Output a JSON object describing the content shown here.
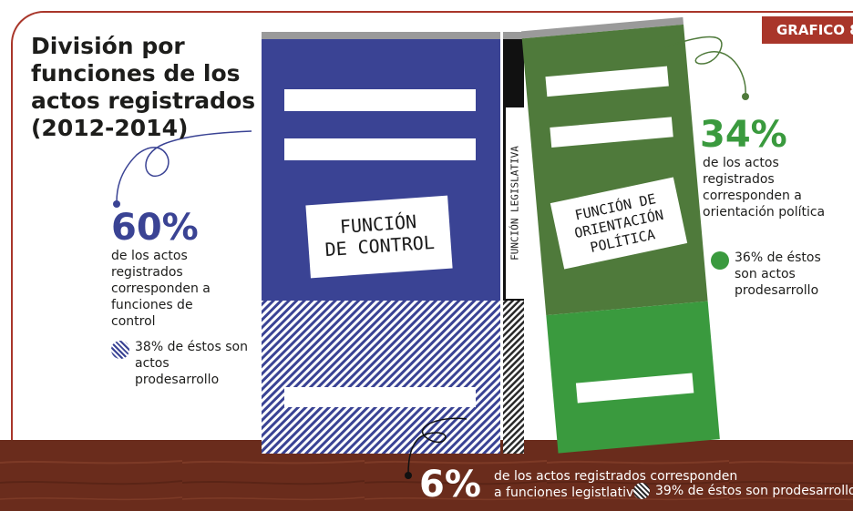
{
  "tag": "GRAFICO 8",
  "title": "División por funciones de los actos registrados (2012-2014)",
  "control": {
    "percent": "60%",
    "description": "de los actos registrados corresponden a funciones de control",
    "legend": "38% de éstos son actos prodesarrollo",
    "book_label_line1": "FUNCIÓN",
    "book_label_line2": "DE CONTROL",
    "color": "#3a4394"
  },
  "orientation": {
    "percent": "34%",
    "description": "de los actos registrados corresponden a orientación política",
    "legend": "36% de éstos son actos prodesarrollo",
    "book_label_line1": "FUNCIÓN DE",
    "book_label_line2": "ORIENTACIÓN",
    "book_label_line3": "POLÍTICA",
    "color_top": "#4f7a3b",
    "color_bottom": "#3a9a3e"
  },
  "legislative": {
    "percent": "6%",
    "description_line1": "de los actos  registrados corresponden",
    "description_line2": "a funciones legistlativa",
    "legend": "39% de éstos son prodesarrollo",
    "book_label": "FUNCIÓN LEGISLATIVA"
  },
  "colors": {
    "frame": "#a9362a",
    "shelf": "#6a2c1c",
    "percent_blue": "#3a4394",
    "percent_green": "#3a9a3e"
  }
}
